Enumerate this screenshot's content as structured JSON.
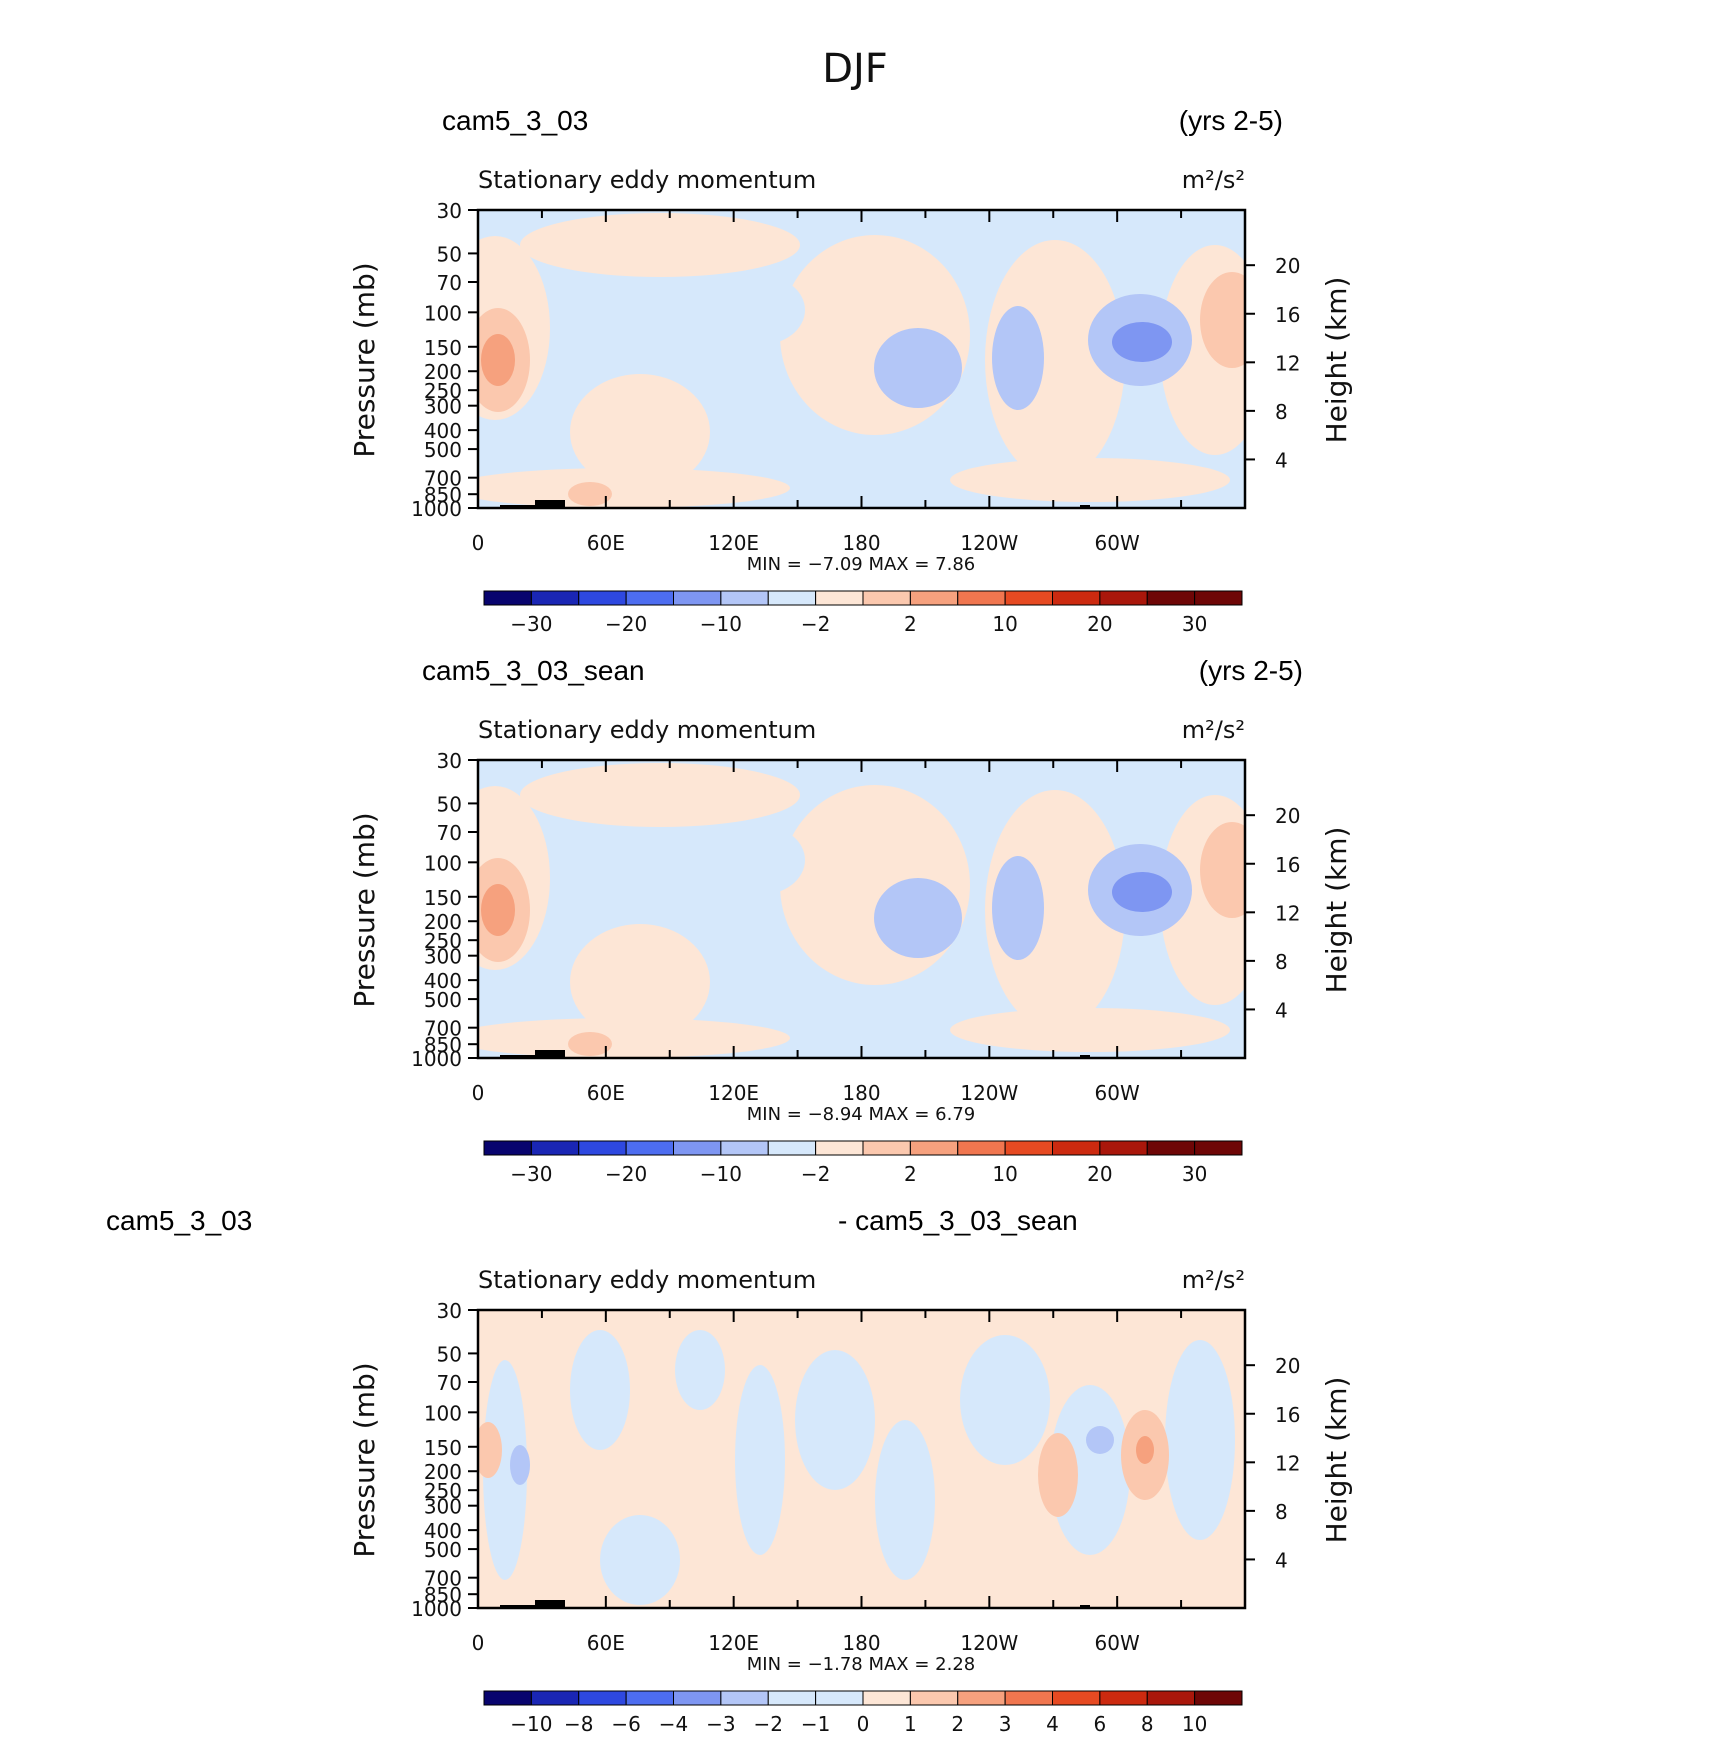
{
  "figure": {
    "title": "DJF",
    "season": "DJF"
  },
  "colors": {
    "dark_blue": "#08046e",
    "blue1": "#1a26b4",
    "blue2": "#2e48e0",
    "blue3": "#4d6df0",
    "blue4": "#7e96f2",
    "blue5": "#b3c6f7",
    "light_blue": "#d6e8fb",
    "light_peach": "#fde6d6",
    "peach1": "#fbc8ae",
    "peach2": "#f6a17e",
    "orange1": "#f0764f",
    "orange2": "#e64a22",
    "red1": "#cc2a10",
    "red2": "#a9170b",
    "dark_red": "#6e0606",
    "topography": "#000000"
  },
  "chart_data": [
    {
      "type": "heatmap",
      "panel_label": "cam5_3_03",
      "years": "(yrs 2-5)",
      "title": "Stationary eddy momentum",
      "units": "m²/s²",
      "xlabel": "",
      "ylabel": "Pressure (mb)",
      "ylabel_right": "Height (km)",
      "x_ticklabels": [
        "0",
        "60E",
        "120E",
        "180",
        "120W",
        "60W"
      ],
      "xlim": [
        0,
        360
      ],
      "y_ticklabels": [
        "30",
        "50",
        "70",
        "100",
        "150",
        "200",
        "250",
        "300",
        "400",
        "500",
        "700",
        "850",
        "1000"
      ],
      "ylim": [
        1000,
        30
      ],
      "y_right_ticklabels": [
        "20",
        "16",
        "12",
        "8",
        "4"
      ],
      "stats_text": "MIN =   −7.09   MAX =    7.86",
      "min": -7.09,
      "max": 7.86,
      "colorbar_levels": [
        "−30",
        "−20",
        "−10",
        "−2",
        "2",
        "10",
        "20",
        "30"
      ]
    },
    {
      "type": "heatmap",
      "panel_label": "cam5_3_03_sean",
      "years": "(yrs 2-5)",
      "title": "Stationary eddy momentum",
      "units": "m²/s²",
      "xlabel": "",
      "ylabel": "Pressure (mb)",
      "ylabel_right": "Height (km)",
      "x_ticklabels": [
        "0",
        "60E",
        "120E",
        "180",
        "120W",
        "60W"
      ],
      "xlim": [
        0,
        360
      ],
      "y_ticklabels": [
        "30",
        "50",
        "70",
        "100",
        "150",
        "200",
        "250",
        "300",
        "400",
        "500",
        "700",
        "850",
        "1000"
      ],
      "ylim": [
        1000,
        30
      ],
      "y_right_ticklabels": [
        "20",
        "16",
        "12",
        "8",
        "4"
      ],
      "stats_text": "MIN =   −8.94   MAX =    6.79",
      "min": -8.94,
      "max": 6.79,
      "colorbar_levels": [
        "−30",
        "−20",
        "−10",
        "−2",
        "2",
        "10",
        "20",
        "30"
      ]
    },
    {
      "type": "heatmap",
      "panel_label": "cam5_3_03",
      "panel_label_right": "- cam5_3_03_sean",
      "title": "Stationary eddy momentum",
      "units": "m²/s²",
      "xlabel": "",
      "ylabel": "Pressure (mb)",
      "ylabel_right": "Height (km)",
      "x_ticklabels": [
        "0",
        "60E",
        "120E",
        "180",
        "120W",
        "60W"
      ],
      "xlim": [
        0,
        360
      ],
      "y_ticklabels": [
        "30",
        "50",
        "70",
        "100",
        "150",
        "200",
        "250",
        "300",
        "400",
        "500",
        "700",
        "850",
        "1000"
      ],
      "ylim": [
        1000,
        30
      ],
      "y_right_ticklabels": [
        "20",
        "16",
        "12",
        "8",
        "4"
      ],
      "stats_text": "MIN =   −1.78   MAX =    2.28",
      "min": -1.78,
      "max": 2.28,
      "colorbar_levels": [
        "−10",
        "−8",
        "−6",
        "−4",
        "−3",
        "−2",
        "−1",
        "0",
        "1",
        "2",
        "3",
        "4",
        "6",
        "8",
        "10"
      ]
    }
  ]
}
